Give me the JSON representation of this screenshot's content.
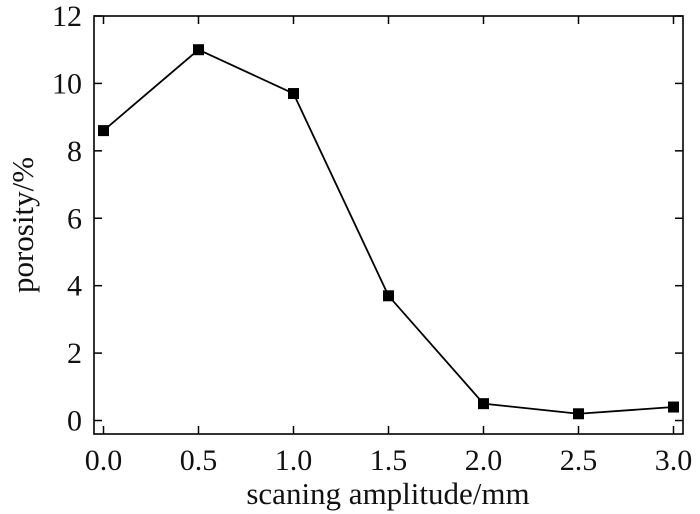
{
  "chart_data": {
    "type": "line",
    "xlabel": "scaning amplitude/mm",
    "ylabel": "porosity/%",
    "x": [
      0.0,
      0.5,
      1.0,
      1.5,
      2.0,
      2.5,
      3.0
    ],
    "series": [
      {
        "values": [
          8.6,
          11.0,
          9.7,
          3.7,
          0.5,
          0.2,
          0.4
        ],
        "marker": "square"
      }
    ],
    "xlim": [
      -0.05,
      3.05
    ],
    "ylim": [
      -0.4,
      12
    ],
    "xticks": [
      0.0,
      0.5,
      1.0,
      1.5,
      2.0,
      2.5,
      3.0
    ],
    "xtick_labels": [
      "0.0",
      "0.5",
      "1.0",
      "1.5",
      "2.0",
      "2.5",
      "3.0"
    ],
    "yticks": [
      0,
      2,
      4,
      6,
      8,
      10,
      12
    ],
    "ytick_labels": [
      "0",
      "2",
      "4",
      "6",
      "8",
      "10",
      "12"
    ],
    "grid": false,
    "colors": {
      "line": "#000000",
      "marker": "#000000",
      "axis": "#000000"
    }
  }
}
